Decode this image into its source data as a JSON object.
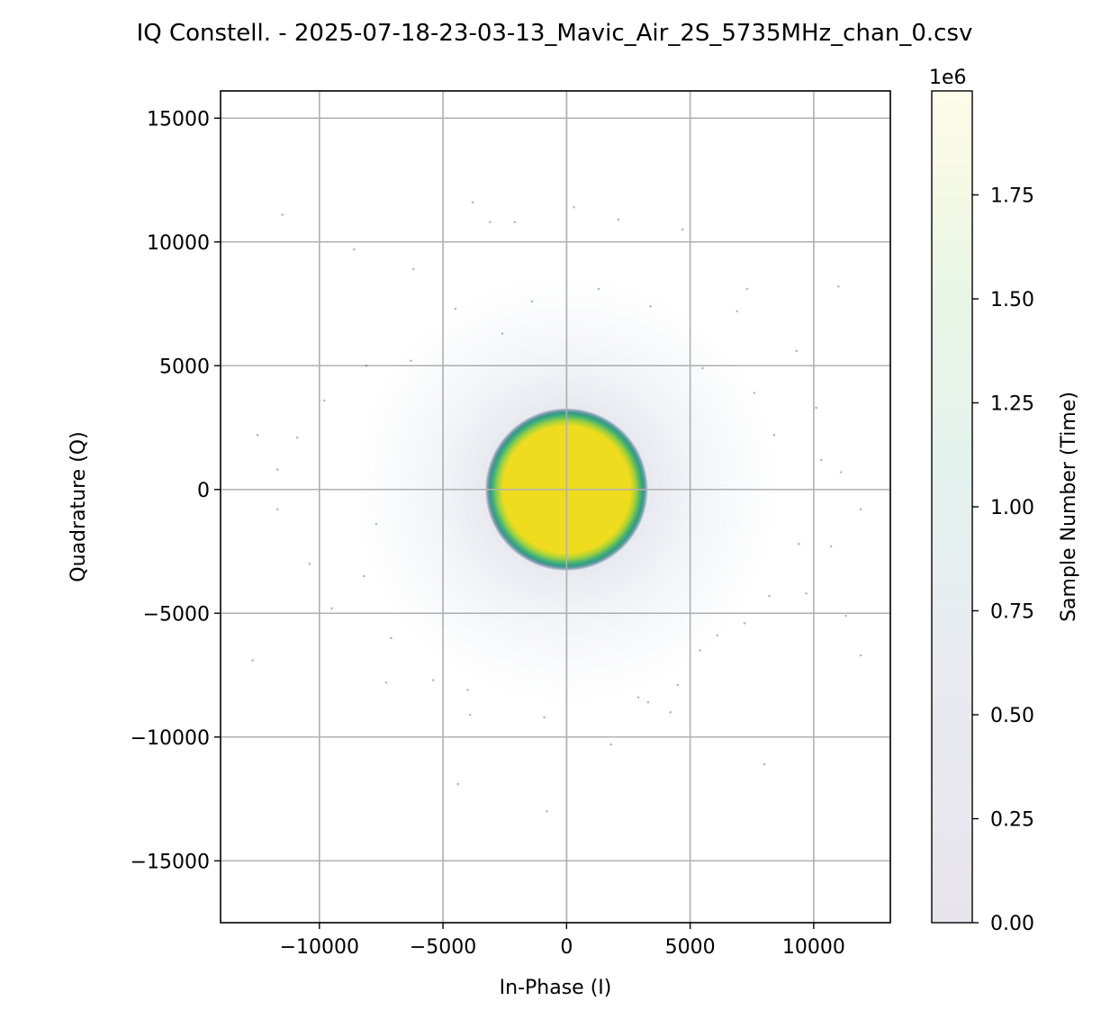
{
  "chart_data": {
    "type": "scatter",
    "title": "IQ Constell. - 2025-07-18-23-03-13_Mavic_Air_2S_5735MHz_chan_0.csv",
    "xlabel": "In-Phase (I)",
    "ylabel": "Quadrature (Q)",
    "xlim": [
      -14000,
      13100
    ],
    "ylim": [
      -17500,
      16100
    ],
    "xticks": [
      -10000,
      -5000,
      0,
      5000,
      10000
    ],
    "xtick_labels": [
      "−10000",
      "−5000",
      "0",
      "5000",
      "10000"
    ],
    "yticks": [
      15000,
      10000,
      5000,
      0,
      -5000,
      -10000,
      -15000
    ],
    "ytick_labels": [
      "15000",
      "10000",
      "5000",
      "0",
      "−5000",
      "−10000",
      "−15000"
    ],
    "grid": true,
    "cluster": {
      "center": [
        0,
        0
      ],
      "core_radius": 2700,
      "edge_radius": 3300,
      "core_color": "#f0dc1e",
      "ring_color": "#2f9c84",
      "halo_color": "#51608f"
    },
    "outliers": [
      [
        -11500,
        11100
      ],
      [
        -8600,
        9700
      ],
      [
        -6200,
        8900
      ],
      [
        -3800,
        11600
      ],
      [
        -3100,
        10800
      ],
      [
        -2100,
        10800
      ],
      [
        300,
        11400
      ],
      [
        2100,
        10900
      ],
      [
        4700,
        10500
      ],
      [
        7300,
        8100
      ],
      [
        11000,
        8200
      ],
      [
        9300,
        5600
      ],
      [
        10100,
        3300
      ],
      [
        7600,
        3900
      ],
      [
        8400,
        2200
      ],
      [
        10300,
        1200
      ],
      [
        11100,
        700
      ],
      [
        9400,
        -2200
      ],
      [
        11900,
        -800
      ],
      [
        10700,
        -2300
      ],
      [
        8200,
        -4300
      ],
      [
        9700,
        -4200
      ],
      [
        11300,
        -5100
      ],
      [
        7200,
        -5400
      ],
      [
        6100,
        -5900
      ],
      [
        5400,
        -6500
      ],
      [
        3300,
        -8600
      ],
      [
        4500,
        -7900
      ],
      [
        -900,
        -9200
      ],
      [
        1800,
        -10300
      ],
      [
        2900,
        -8400
      ],
      [
        4200,
        -9000
      ],
      [
        -4400,
        -11900
      ],
      [
        -800,
        -13000
      ],
      [
        8000,
        -11100
      ],
      [
        11900,
        -6700
      ],
      [
        -12700,
        -6900
      ],
      [
        -9500,
        -4800
      ],
      [
        -10400,
        -3000
      ],
      [
        -11700,
        -800
      ],
      [
        -12500,
        2200
      ],
      [
        -11700,
        800
      ],
      [
        -10900,
        2100
      ],
      [
        -9800,
        3600
      ],
      [
        -8100,
        5000
      ],
      [
        -6300,
        5200
      ],
      [
        -4500,
        7300
      ],
      [
        -7700,
        -1400
      ],
      [
        -8200,
        -3500
      ],
      [
        -7100,
        -6000
      ],
      [
        -7300,
        -7800
      ],
      [
        -5400,
        -7700
      ],
      [
        -4000,
        -8100
      ],
      [
        -3900,
        -9100
      ],
      [
        6900,
        7200
      ],
      [
        5500,
        4900
      ],
      [
        3400,
        7400
      ],
      [
        1300,
        8100
      ],
      [
        -1400,
        7600
      ],
      [
        -2600,
        6300
      ]
    ],
    "colorbar": {
      "label": "Sample Number (Time)",
      "offset_text": "1e6",
      "range": [
        0,
        2
      ],
      "ticks": [
        0.0,
        0.25,
        0.5,
        0.75,
        1.0,
        1.25,
        1.5,
        1.75
      ],
      "tick_labels": [
        "0.00",
        "0.25",
        "0.50",
        "0.75",
        "1.00",
        "1.25",
        "1.50",
        "1.75"
      ],
      "colors": [
        "#e8e4ec",
        "#e8eaf0",
        "#e6eef0",
        "#e4f2ee",
        "#e6f6e6",
        "#eef8e2",
        "#f8fae6",
        "#fefcea"
      ]
    }
  }
}
